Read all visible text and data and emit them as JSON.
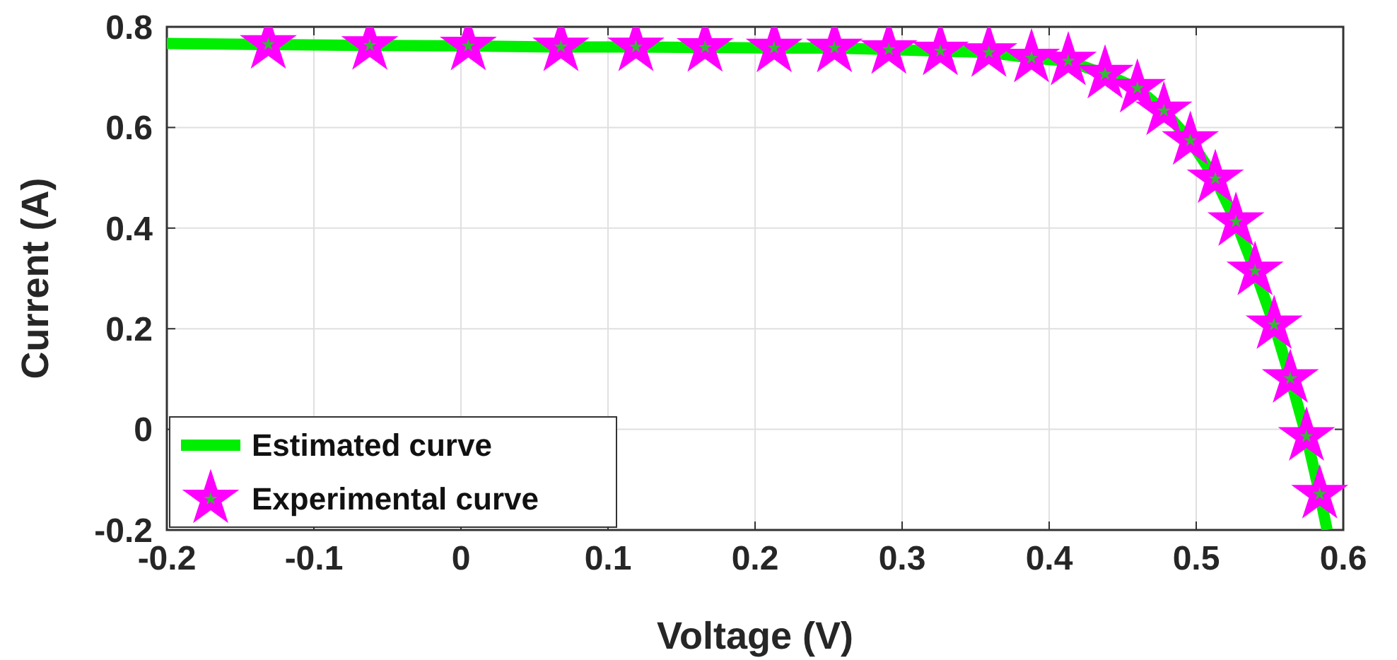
{
  "chart_data": {
    "type": "line",
    "xlabel": "Voltage (V)",
    "ylabel": "Current (A)",
    "xlim": [
      -0.2,
      0.6
    ],
    "ylim": [
      -0.2,
      0.8
    ],
    "xticks": [
      -0.2,
      -0.1,
      0,
      0.1,
      0.2,
      0.3,
      0.4,
      0.5,
      0.6
    ],
    "yticks": [
      -0.2,
      0,
      0.2,
      0.4,
      0.6,
      0.8
    ],
    "grid": true,
    "legend": "bottom left",
    "series": [
      {
        "name": "Estimated curve",
        "color": "#00ee00",
        "marker": "none",
        "line_style": "solid",
        "x": [
          -0.2,
          -0.131,
          -0.062,
          0.005,
          0.068,
          0.119,
          0.166,
          0.213,
          0.254,
          0.291,
          0.326,
          0.359,
          0.388,
          0.413,
          0.438,
          0.46,
          0.478,
          0.496,
          0.513,
          0.527,
          0.54,
          0.553,
          0.564,
          0.575,
          0.584,
          0.589
        ],
        "values": [
          0.767,
          0.765,
          0.763,
          0.762,
          0.76,
          0.76,
          0.759,
          0.758,
          0.758,
          0.755,
          0.752,
          0.749,
          0.738,
          0.732,
          0.706,
          0.678,
          0.633,
          0.574,
          0.498,
          0.413,
          0.315,
          0.208,
          0.101,
          -0.014,
          -0.129,
          -0.2
        ]
      },
      {
        "name": "Experimental curve",
        "type": "scatter",
        "color": "#ff00ff",
        "marker": "star",
        "x": [
          -0.131,
          -0.062,
          0.005,
          0.068,
          0.119,
          0.166,
          0.213,
          0.254,
          0.291,
          0.326,
          0.359,
          0.388,
          0.413,
          0.438,
          0.46,
          0.478,
          0.496,
          0.513,
          0.527,
          0.54,
          0.553,
          0.564,
          0.575,
          0.584
        ],
        "values": [
          0.765,
          0.763,
          0.762,
          0.76,
          0.76,
          0.759,
          0.758,
          0.758,
          0.755,
          0.752,
          0.749,
          0.738,
          0.732,
          0.706,
          0.678,
          0.633,
          0.574,
          0.498,
          0.413,
          0.315,
          0.208,
          0.101,
          -0.014,
          -0.129
        ]
      }
    ]
  }
}
